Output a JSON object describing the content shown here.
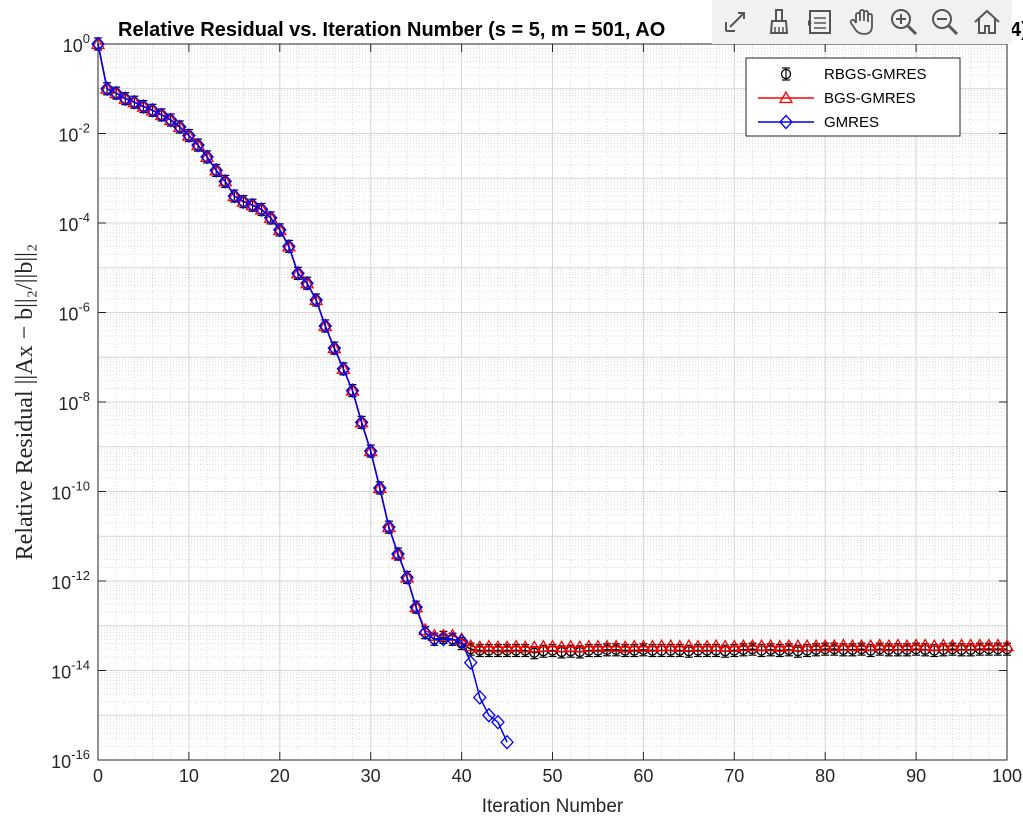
{
  "toolbar": {
    "icons": [
      "export-icon",
      "brush-icon",
      "datatip-icon",
      "pan-icon",
      "zoom-in-icon",
      "zoom-out-icon",
      "home-icon"
    ]
  },
  "chart_data": {
    "type": "line",
    "title": "Relative Residual vs. Iteration Number (s = 5, m = 501, AO",
    "title_suffix": "4)",
    "xlabel": "Iteration Number",
    "ylabel": "Relative Residual  ||Ax − b||₂/||b||₂",
    "yscale": "log",
    "xlim": [
      0,
      100
    ],
    "ylim": [
      1e-16,
      1
    ],
    "xticks": [
      0,
      10,
      20,
      30,
      40,
      50,
      60,
      70,
      80,
      90,
      100
    ],
    "yticks": [
      {
        "exp": 0,
        "label": "10",
        "sup": "0"
      },
      {
        "exp": -2,
        "label": "10",
        "sup": "-2"
      },
      {
        "exp": -4,
        "label": "10",
        "sup": "-4"
      },
      {
        "exp": -6,
        "label": "10",
        "sup": "-6"
      },
      {
        "exp": -8,
        "label": "10",
        "sup": "-8"
      },
      {
        "exp": -10,
        "label": "10",
        "sup": "-10"
      },
      {
        "exp": -12,
        "label": "10",
        "sup": "-12"
      },
      {
        "exp": -14,
        "label": "10",
        "sup": "-14"
      },
      {
        "exp": -16,
        "label": "10",
        "sup": "-16"
      }
    ],
    "grid": true,
    "minor_grid": true,
    "legend_position": "top-right",
    "series": [
      {
        "name": "RBGS-GMRES",
        "color": "#000000",
        "marker": "circle-errorbar",
        "x": [
          0,
          1,
          2,
          3,
          4,
          5,
          6,
          7,
          8,
          9,
          10,
          11,
          12,
          13,
          14,
          15,
          16,
          17,
          18,
          19,
          20,
          21,
          22,
          23,
          24,
          25,
          26,
          27,
          28,
          29,
          30,
          31,
          32,
          33,
          34,
          35,
          36,
          37,
          38,
          39,
          40,
          41,
          42,
          43,
          44,
          45,
          46,
          47,
          48,
          49,
          50,
          51,
          52,
          53,
          54,
          55,
          56,
          57,
          58,
          59,
          60,
          61,
          62,
          63,
          64,
          65,
          66,
          67,
          68,
          69,
          70,
          71,
          72,
          73,
          74,
          75,
          76,
          77,
          78,
          79,
          80,
          81,
          82,
          83,
          84,
          85,
          86,
          87,
          88,
          89,
          90,
          91,
          92,
          93,
          94,
          95,
          96,
          97,
          98,
          99,
          100
        ],
        "y": [
          1,
          0.1,
          0.08,
          0.06,
          0.05,
          0.04,
          0.033,
          0.026,
          0.02,
          0.014,
          0.009,
          0.0055,
          0.003,
          0.0015,
          0.00085,
          0.0004,
          0.0003,
          0.00025,
          0.0002,
          0.00013,
          7e-05,
          3e-05,
          7.5e-06,
          4.5e-06,
          1.9e-06,
          5e-07,
          1.6e-07,
          5.5e-08,
          1.8e-08,
          3.5e-09,
          8e-10,
          1.2e-10,
          1.6e-11,
          4e-12,
          1.2e-12,
          2.6e-13,
          7e-14,
          5e-14,
          5.5e-14,
          5e-14,
          4e-14,
          3e-14,
          2.8e-14,
          2.8e-14,
          2.8e-14,
          2.8e-14,
          2.8e-14,
          2.8e-14,
          2.5e-14,
          2.7e-14,
          2.8e-14,
          2.6e-14,
          2.7e-14,
          2.6e-14,
          2.8e-14,
          2.8e-14,
          2.9e-14,
          2.9e-14,
          2.8e-14,
          2.8e-14,
          2.9e-14,
          2.8e-14,
          2.8e-14,
          2.8e-14,
          2.8e-14,
          2.7e-14,
          2.8e-14,
          2.8e-14,
          2.8e-14,
          2.7e-14,
          2.8e-14,
          2.9e-14,
          3e-14,
          2.8e-14,
          2.9e-14,
          2.8e-14,
          2.9e-14,
          2.7e-14,
          2.8e-14,
          2.9e-14,
          3e-14,
          3e-14,
          2.9e-14,
          2.9e-14,
          3e-14,
          2.8e-14,
          3e-14,
          2.9e-14,
          2.9e-14,
          2.9e-14,
          3e-14,
          2.9e-14,
          2.8e-14,
          2.9e-14,
          3e-14,
          2.9e-14,
          2.9e-14,
          3e-14,
          3e-14,
          3e-14,
          3e-14
        ]
      },
      {
        "name": "BGS-GMRES",
        "color": "#ff0000",
        "marker": "triangle",
        "x": [
          0,
          1,
          2,
          3,
          4,
          5,
          6,
          7,
          8,
          9,
          10,
          11,
          12,
          13,
          14,
          15,
          16,
          17,
          18,
          19,
          20,
          21,
          22,
          23,
          24,
          25,
          26,
          27,
          28,
          29,
          30,
          31,
          32,
          33,
          34,
          35,
          36,
          37,
          38,
          39,
          40,
          41,
          42,
          43,
          44,
          45,
          46,
          47,
          48,
          49,
          50,
          51,
          52,
          53,
          54,
          55,
          56,
          57,
          58,
          59,
          60,
          61,
          62,
          63,
          64,
          65,
          66,
          67,
          68,
          69,
          70,
          71,
          72,
          73,
          74,
          75,
          76,
          77,
          78,
          79,
          80,
          81,
          82,
          83,
          84,
          85,
          86,
          87,
          88,
          89,
          90,
          91,
          92,
          93,
          94,
          95,
          96,
          97,
          98,
          99,
          100
        ],
        "y": [
          1,
          0.1,
          0.08,
          0.06,
          0.05,
          0.04,
          0.033,
          0.026,
          0.02,
          0.014,
          0.009,
          0.0055,
          0.003,
          0.0015,
          0.00085,
          0.0004,
          0.0003,
          0.00025,
          0.0002,
          0.00013,
          7e-05,
          3e-05,
          7.5e-06,
          4.5e-06,
          1.9e-06,
          5e-07,
          1.6e-07,
          5.5e-08,
          1.8e-08,
          3.5e-09,
          8e-10,
          1.2e-10,
          1.6e-11,
          4e-12,
          1.2e-12,
          2.6e-13,
          8e-14,
          6e-14,
          6e-14,
          6e-14,
          5e-14,
          3.5e-14,
          3.3e-14,
          3.4e-14,
          3.3e-14,
          3.3e-14,
          3.4e-14,
          3.3e-14,
          3.3e-14,
          3.4e-14,
          3.4e-14,
          3.3e-14,
          3.4e-14,
          3.3e-14,
          3.4e-14,
          3.4e-14,
          3.4e-14,
          3.4e-14,
          3.3e-14,
          3.4e-14,
          3.4e-14,
          3.4e-14,
          3.5e-14,
          3.5e-14,
          3.4e-14,
          3.5e-14,
          3.4e-14,
          3.4e-14,
          3.5e-14,
          3.4e-14,
          3.4e-14,
          3.5e-14,
          3.5e-14,
          3.5e-14,
          3.5e-14,
          3.4e-14,
          3.5e-14,
          3.5e-14,
          3.5e-14,
          3.5e-14,
          3.5e-14,
          3.5e-14,
          3.6e-14,
          3.5e-14,
          3.5e-14,
          3.5e-14,
          3.6e-14,
          3.5e-14,
          3.6e-14,
          3.5e-14,
          3.6e-14,
          3.6e-14,
          3.5e-14,
          3.6e-14,
          3.5e-14,
          3.6e-14,
          3.6e-14,
          3.6e-14,
          3.6e-14,
          3.6e-14,
          3.5e-14
        ]
      },
      {
        "name": "GMRES",
        "color": "#0000ff",
        "marker": "diamond",
        "x": [
          0,
          1,
          2,
          3,
          4,
          5,
          6,
          7,
          8,
          9,
          10,
          11,
          12,
          13,
          14,
          15,
          16,
          17,
          18,
          19,
          20,
          21,
          22,
          23,
          24,
          25,
          26,
          27,
          28,
          29,
          30,
          31,
          32,
          33,
          34,
          35,
          36,
          37,
          38,
          39,
          40,
          41,
          42,
          43,
          44,
          45
        ],
        "y": [
          1,
          0.1,
          0.08,
          0.06,
          0.05,
          0.04,
          0.033,
          0.026,
          0.02,
          0.014,
          0.009,
          0.0055,
          0.003,
          0.0015,
          0.00085,
          0.0004,
          0.0003,
          0.00025,
          0.0002,
          0.00013,
          7e-05,
          3e-05,
          7.5e-06,
          4.5e-06,
          1.9e-06,
          5e-07,
          1.6e-07,
          5.5e-08,
          1.8e-08,
          3.5e-09,
          8e-10,
          1.2e-10,
          1.6e-11,
          4e-12,
          1.2e-12,
          2.6e-13,
          7e-14,
          5e-14,
          5e-14,
          5e-14,
          4.5e-14,
          1.5e-14,
          2.5e-15,
          1e-15,
          7e-16,
          2.5e-16
        ]
      }
    ]
  }
}
